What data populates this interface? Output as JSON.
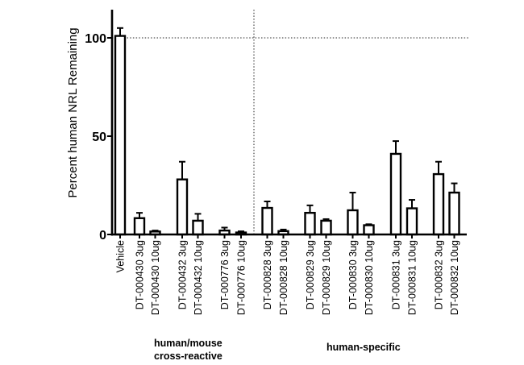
{
  "chart_data": {
    "type": "bar",
    "title": "",
    "xlabel": "",
    "ylabel": "Percent human NRL Remaining",
    "ylim": [
      0,
      114
    ],
    "yticks": [
      0,
      50,
      100
    ],
    "ytick_labels": [
      "0",
      "50",
      "100"
    ],
    "grid": false,
    "reference_line_y": 100,
    "categories": [
      "Vehicle",
      "DT-000430 3ug",
      "DT-000430 10ug",
      "DT-000432 3ug",
      "DT-000432 10ug",
      "DT-000776 3ug",
      "DT-000776 10ug",
      "DT-000828 3ug",
      "DT-000828 10ug",
      "DT-000829 3ug",
      "DT-000829 10ug",
      "DT-000830 3ug",
      "DT-000830 10ug",
      "DT-000831 3ug",
      "DT-000831 10ug",
      "DT-000832 3ug",
      "DT-000832 10ug"
    ],
    "values": [
      101,
      8.3,
      1.5,
      28,
      7,
      2,
      1,
      13.5,
      1.7,
      11,
      7,
      12.3,
      4.7,
      41,
      13.3,
      30.7,
      21.3
    ],
    "error_upper": [
      105,
      11,
      2,
      37,
      10.5,
      3.5,
      1.6,
      16.8,
      2.5,
      14.8,
      7.8,
      21.3,
      5.2,
      47.5,
      17.6,
      37,
      26
    ],
    "groups": [
      {
        "label_lines": [
          "human/mouse",
          "cross-reactive"
        ],
        "categories": [
          "DT-000430 3ug",
          "DT-000430 10ug",
          "DT-000432 3ug",
          "DT-000432 10ug",
          "DT-000776 3ug",
          "DT-000776 10ug"
        ]
      },
      {
        "label_lines": [
          "human-specific"
        ],
        "categories": [
          "DT-000828 3ug",
          "DT-000828 10ug",
          "DT-000829 3ug",
          "DT-000829 10ug",
          "DT-000830 3ug",
          "DT-000830 10ug",
          "DT-000831 3ug",
          "DT-000831 10ug",
          "DT-000832 3ug",
          "DT-000832 10ug"
        ]
      }
    ],
    "colors": {
      "bar_fill": "#ffffff",
      "bar_stroke": "#000000",
      "axis": "#000000",
      "reference_line": "#555555"
    }
  }
}
